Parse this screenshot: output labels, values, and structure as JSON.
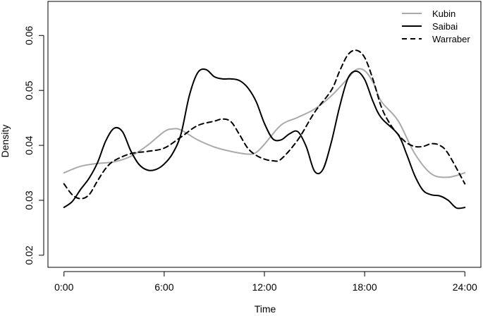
{
  "chart_data": {
    "type": "line",
    "xlabel": "Time",
    "ylabel": "Density",
    "x_ticks": [
      {
        "value": 0,
        "label": "0:00"
      },
      {
        "value": 6,
        "label": "6:00"
      },
      {
        "value": 12,
        "label": "12:00"
      },
      {
        "value": 18,
        "label": "18:00"
      },
      {
        "value": 24,
        "label": "24:00"
      }
    ],
    "y_ticks": [
      {
        "value": 0.02,
        "label": "0.02"
      },
      {
        "value": 0.03,
        "label": "0.03"
      },
      {
        "value": 0.04,
        "label": "0.04"
      },
      {
        "value": 0.05,
        "label": "0.05"
      },
      {
        "value": 0.06,
        "label": "0.06"
      }
    ],
    "xlim": [
      -0.96,
      24.96
    ],
    "ylim": [
      0.0178,
      0.0662
    ],
    "grid": false,
    "legend_position": "top-right",
    "series": [
      {
        "name": "Kubin",
        "color": "#aaaaaa",
        "dash": "solid",
        "points": [
          [
            0,
            0.035
          ],
          [
            1,
            0.0362
          ],
          [
            2,
            0.0367
          ],
          [
            3,
            0.037
          ],
          [
            4,
            0.038
          ],
          [
            5,
            0.04
          ],
          [
            6,
            0.0425
          ],
          [
            6.5,
            0.043
          ],
          [
            7,
            0.0428
          ],
          [
            8,
            0.041
          ],
          [
            9,
            0.0397
          ],
          [
            10,
            0.0389
          ],
          [
            11,
            0.0384
          ],
          [
            11.5,
            0.0387
          ],
          [
            12,
            0.0402
          ],
          [
            13,
            0.0437
          ],
          [
            14,
            0.0451
          ],
          [
            15,
            0.0466
          ],
          [
            16,
            0.049
          ],
          [
            17,
            0.0522
          ],
          [
            17.5,
            0.0538
          ],
          [
            18,
            0.0536
          ],
          [
            18.5,
            0.0515
          ],
          [
            19,
            0.048
          ],
          [
            20,
            0.0445
          ],
          [
            21,
            0.0385
          ],
          [
            22,
            0.0348
          ],
          [
            23,
            0.0342
          ],
          [
            24,
            0.035
          ]
        ]
      },
      {
        "name": "Saibai",
        "color": "#000000",
        "dash": "solid",
        "points": [
          [
            0,
            0.0287
          ],
          [
            0.5,
            0.0298
          ],
          [
            1,
            0.032
          ],
          [
            1.5,
            0.034
          ],
          [
            2,
            0.0368
          ],
          [
            2.5,
            0.0408
          ],
          [
            3,
            0.0431
          ],
          [
            3.5,
            0.0425
          ],
          [
            4,
            0.039
          ],
          [
            4.5,
            0.0365
          ],
          [
            5,
            0.0355
          ],
          [
            5.5,
            0.0356
          ],
          [
            6,
            0.0366
          ],
          [
            6.5,
            0.0385
          ],
          [
            7,
            0.042
          ],
          [
            7.5,
            0.049
          ],
          [
            8,
            0.0532
          ],
          [
            8.5,
            0.0538
          ],
          [
            9,
            0.0525
          ],
          [
            9.5,
            0.0521
          ],
          [
            10,
            0.0521
          ],
          [
            10.5,
            0.0518
          ],
          [
            11,
            0.0505
          ],
          [
            11.5,
            0.048
          ],
          [
            12,
            0.044
          ],
          [
            12.5,
            0.0412
          ],
          [
            13,
            0.041
          ],
          [
            13.5,
            0.0421
          ],
          [
            14,
            0.0425
          ],
          [
            14.5,
            0.0398
          ],
          [
            15,
            0.0353
          ],
          [
            15.5,
            0.0356
          ],
          [
            16,
            0.0405
          ],
          [
            16.5,
            0.047
          ],
          [
            17,
            0.0522
          ],
          [
            17.5,
            0.0535
          ],
          [
            18,
            0.052
          ],
          [
            18.5,
            0.048
          ],
          [
            19,
            0.045
          ],
          [
            20,
            0.042
          ],
          [
            20.5,
            0.0385
          ],
          [
            21,
            0.0345
          ],
          [
            21.5,
            0.0318
          ],
          [
            22,
            0.031
          ],
          [
            22.5,
            0.0308
          ],
          [
            23,
            0.03
          ],
          [
            23.5,
            0.0286
          ],
          [
            24,
            0.0287
          ]
        ]
      },
      {
        "name": "Warraber",
        "color": "#000000",
        "dash": "dashed",
        "points": [
          [
            0,
            0.033
          ],
          [
            0.5,
            0.031
          ],
          [
            1,
            0.0303
          ],
          [
            1.5,
            0.031
          ],
          [
            2,
            0.0335
          ],
          [
            2.5,
            0.0358
          ],
          [
            3,
            0.0372
          ],
          [
            4,
            0.0385
          ],
          [
            5,
            0.0389
          ],
          [
            6,
            0.0395
          ],
          [
            7,
            0.0415
          ],
          [
            8,
            0.0436
          ],
          [
            9,
            0.0444
          ],
          [
            9.5,
            0.0448
          ],
          [
            10,
            0.0443
          ],
          [
            10.5,
            0.042
          ],
          [
            11,
            0.0395
          ],
          [
            11.5,
            0.0382
          ],
          [
            12,
            0.0375
          ],
          [
            12.5,
            0.0372
          ],
          [
            13,
            0.0375
          ],
          [
            14,
            0.041
          ],
          [
            15,
            0.046
          ],
          [
            16,
            0.05
          ],
          [
            16.5,
            0.0535
          ],
          [
            17,
            0.0565
          ],
          [
            17.5,
            0.0573
          ],
          [
            18,
            0.056
          ],
          [
            18.5,
            0.052
          ],
          [
            19,
            0.047
          ],
          [
            19.5,
            0.044
          ],
          [
            20,
            0.042
          ],
          [
            20.5,
            0.0405
          ],
          [
            21,
            0.0398
          ],
          [
            21.5,
            0.0398
          ],
          [
            22,
            0.0403
          ],
          [
            22.5,
            0.04
          ],
          [
            23,
            0.0385
          ],
          [
            24,
            0.033
          ]
        ]
      }
    ]
  }
}
